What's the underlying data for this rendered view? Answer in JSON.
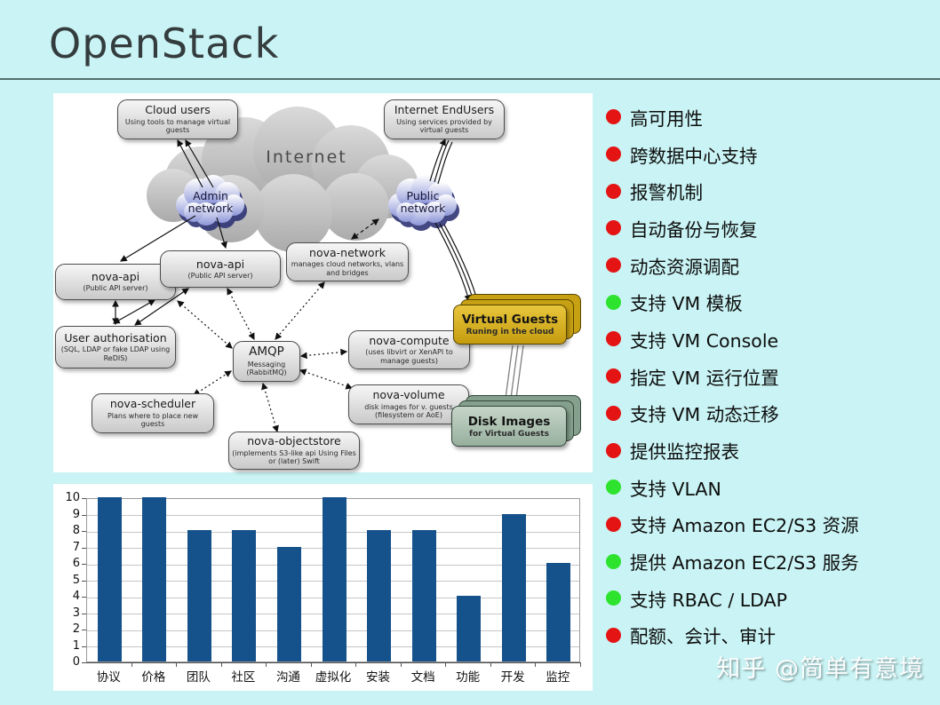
{
  "page": {
    "title": "OpenStack"
  },
  "watermark": "知乎 @简单有意境",
  "diagram": {
    "clouds": {
      "internet": {
        "label": "Internet"
      },
      "admin": {
        "line1": "Admin",
        "line2": "network"
      },
      "public": {
        "line1": "Public",
        "line2": "network"
      }
    },
    "nodes": {
      "cloud_users": {
        "title": "Cloud users",
        "subtitle": "Using tools to manage virtual guests"
      },
      "internet_endusers": {
        "title": "Internet EndUsers",
        "subtitle": "Using services provided by virtual guests"
      },
      "nova_api_1": {
        "title": "nova-api",
        "subtitle": "(Public API server)"
      },
      "nova_api_2": {
        "title": "nova-api",
        "subtitle": "(Public API server)"
      },
      "nova_network": {
        "title": "nova-network",
        "subtitle": "manages cloud networks, vlans and bridges"
      },
      "user_auth": {
        "title": "User authorisation",
        "subtitle": "(SQL, LDAP or fake LDAP using ReDIS)"
      },
      "amqp": {
        "title": "AMQP",
        "subtitle": "Messaging (RabbitMQ)"
      },
      "nova_compute": {
        "title": "nova-compute",
        "subtitle": "(uses libvirt or XenAPI to manage guests)"
      },
      "nova_volume": {
        "title": "nova-volume",
        "subtitle": "disk images for v. guests (filesystem or AoE)"
      },
      "nova_scheduler": {
        "title": "nova-scheduler",
        "subtitle": "Plans where to place new guests"
      },
      "nova_objectstore": {
        "title": "nova-objectstore",
        "subtitle": "(implements S3-like api Using Files or (later) Swift"
      },
      "virtual_guests": {
        "title": "Virtual Guests",
        "subtitle": "Runing in the cloud"
      },
      "disk_images": {
        "title": "Disk Images",
        "subtitle": "for Virtual Guests"
      }
    }
  },
  "features": {
    "bullet_colors": {
      "red": "#e41414",
      "green": "#2de32d"
    },
    "items": [
      {
        "label": "高可用性",
        "bullet": "red"
      },
      {
        "label": "跨数据中心支持",
        "bullet": "red"
      },
      {
        "label": "报警机制",
        "bullet": "red"
      },
      {
        "label": "自动备份与恢复",
        "bullet": "red"
      },
      {
        "label": "动态资源调配",
        "bullet": "red"
      },
      {
        "label": "支持 VM 模板",
        "bullet": "green"
      },
      {
        "label": "支持 VM Console",
        "bullet": "red"
      },
      {
        "label": "指定 VM 运行位置",
        "bullet": "red"
      },
      {
        "label": "支持 VM 动态迁移",
        "bullet": "red"
      },
      {
        "label": "提供监控报表",
        "bullet": "red"
      },
      {
        "label": "支持 VLAN",
        "bullet": "green"
      },
      {
        "label": "支持 Amazon EC2/S3 资源",
        "bullet": "red"
      },
      {
        "label": "提供 Amazon EC2/S3 服务",
        "bullet": "green"
      },
      {
        "label": "支持 RBAC / LDAP",
        "bullet": "green"
      },
      {
        "label": "配额、会计、审计",
        "bullet": "red"
      }
    ]
  },
  "chart_data": {
    "type": "bar",
    "title": "",
    "xlabel": "",
    "ylabel": "",
    "categories": [
      "协议",
      "价格",
      "团队",
      "社区",
      "沟通",
      "虚拟化",
      "安装",
      "文档",
      "功能",
      "开发",
      "监控"
    ],
    "values": [
      10,
      10,
      8,
      8,
      7,
      10,
      8,
      8,
      4,
      9,
      6
    ],
    "ylim": [
      0,
      10
    ],
    "yticks": [
      0,
      1,
      2,
      3,
      4,
      5,
      6,
      7,
      8,
      9,
      10
    ],
    "bar_color": "#15518a",
    "grid": true,
    "legend_position": "none"
  }
}
